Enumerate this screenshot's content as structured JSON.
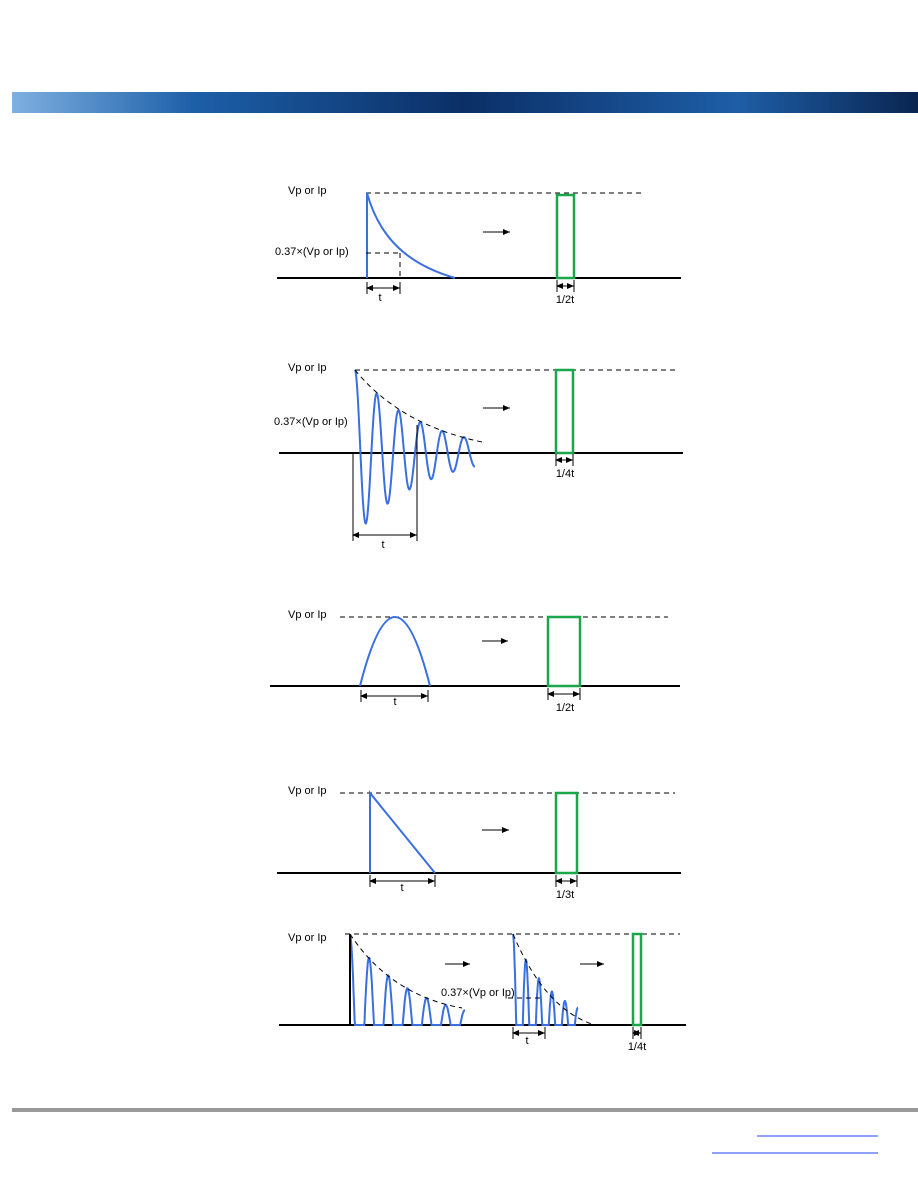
{
  "diagrams": [
    {
      "peak_label": "Vp or Ip",
      "decay_label": "0.37×(Vp or Ip)",
      "duration_label": "t",
      "equivalent_label": "1/2t"
    },
    {
      "peak_label": "Vp or Ip",
      "decay_label": "0.37×(Vp or Ip)",
      "duration_label": "t",
      "equivalent_label": "1/4t"
    },
    {
      "peak_label": "Vp or Ip",
      "duration_label": "t",
      "equivalent_label": "1/2t"
    },
    {
      "peak_label": "Vp or Ip",
      "duration_label": "t",
      "equivalent_label": "1/3t"
    },
    {
      "peak_label": "Vp or Ip",
      "decay_label": "0.37×(Vp or Ip)",
      "duration_label": "t",
      "equivalent_label": "1/4t"
    }
  ]
}
